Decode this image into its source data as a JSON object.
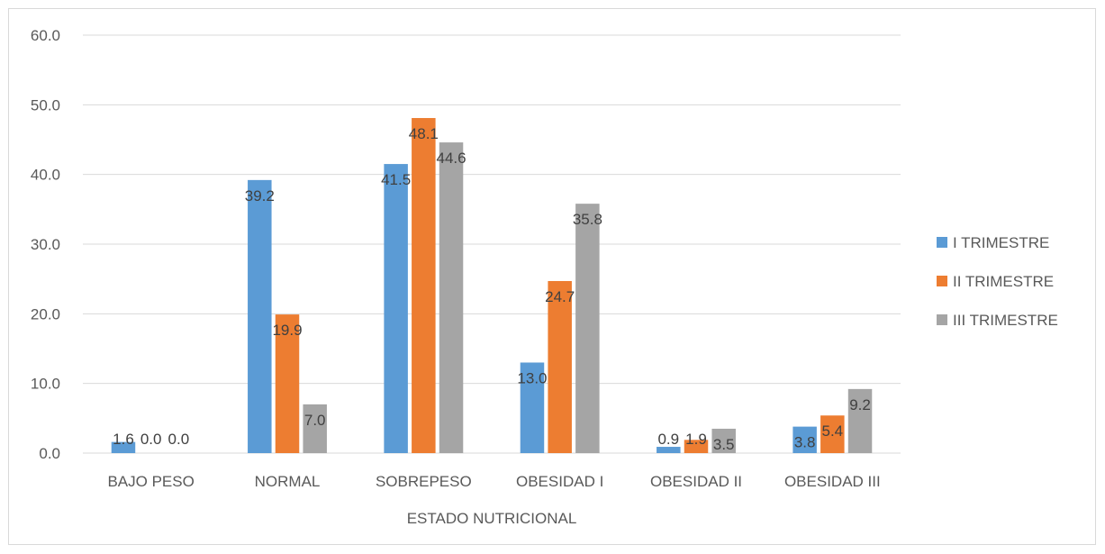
{
  "chart_data": {
    "type": "bar",
    "categories": [
      "BAJO PESO",
      "NORMAL",
      "SOBREPESO",
      "OBESIDAD I",
      "OBESIDAD II",
      "OBESIDAD III"
    ],
    "series": [
      {
        "name": "I TRIMESTRE",
        "color": "#5b9bd5",
        "values": [
          1.6,
          39.2,
          41.5,
          13.0,
          0.9,
          3.8
        ]
      },
      {
        "name": "II TRIMESTRE",
        "color": "#ed7d31",
        "values": [
          0.0,
          19.9,
          48.1,
          24.7,
          1.9,
          5.4
        ]
      },
      {
        "name": "III TRIMESTRE",
        "color": "#a5a5a5",
        "values": [
          0.0,
          7.0,
          44.6,
          35.8,
          3.5,
          9.2
        ]
      }
    ],
    "title": "",
    "xlabel": "ESTADO NUTRICIONAL",
    "ylabel": "",
    "ylim": [
      0,
      60
    ],
    "yticks": [
      "0.0",
      "10.0",
      "20.0",
      "30.0",
      "40.0",
      "50.0",
      "60.0"
    ],
    "grid": true,
    "legend_position": "right"
  }
}
